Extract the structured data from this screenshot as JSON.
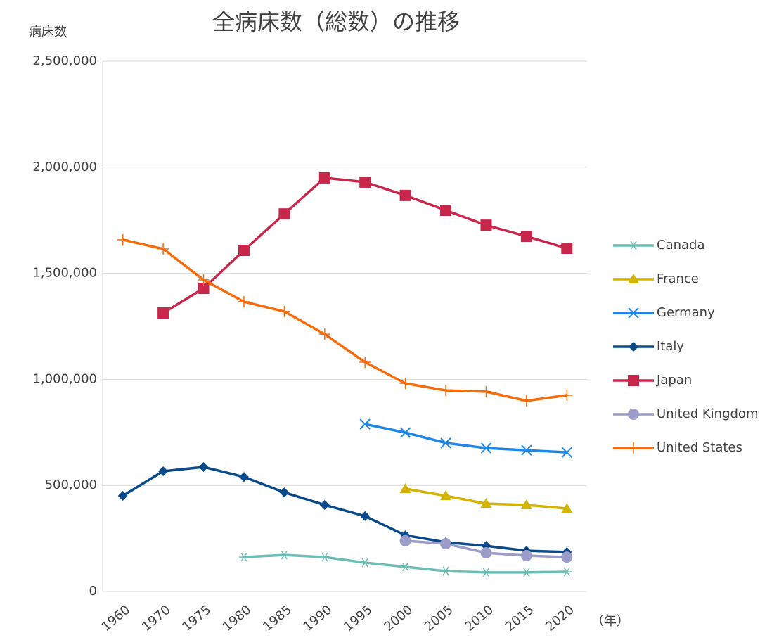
{
  "chart_data": {
    "type": "line",
    "title": "全病床数（総数）の推移",
    "y_label": "病床数",
    "x_label": "（年）",
    "categories": [
      "1960",
      "1970",
      "1975",
      "1980",
      "1985",
      "1990",
      "1995",
      "2000",
      "2005",
      "2010",
      "2015",
      "2020"
    ],
    "ylim": [
      0,
      2500000
    ],
    "yticks": [
      0,
      {
        "value": 500000,
        "label": "500,000"
      },
      {
        "value": 1000000,
        "label": "1,000,000"
      },
      {
        "value": 1500000,
        "label": "1,500,000"
      },
      {
        "value": 2000000,
        "label": "2,000,000"
      },
      {
        "value": 2500000,
        "label": "2,500,000"
      }
    ],
    "grid": true,
    "legend": "right",
    "series": [
      {
        "name": "Canada",
        "color": "#6dbdb4",
        "marker": "asterisk",
        "values": [
          null,
          null,
          null,
          162000,
          172000,
          162000,
          136000,
          116000,
          96000,
          90000,
          90000,
          93000
        ]
      },
      {
        "name": "France",
        "color": "#d4b400",
        "marker": "triangle",
        "values": [
          null,
          null,
          null,
          null,
          null,
          null,
          null,
          484000,
          451000,
          414000,
          408000,
          391000
        ]
      },
      {
        "name": "Germany",
        "color": "#1f87e8",
        "marker": "x",
        "values": [
          null,
          null,
          null,
          null,
          null,
          null,
          789000,
          749000,
          700000,
          676000,
          666000,
          656000
        ]
      },
      {
        "name": "Italy",
        "color": "#0a4a8a",
        "marker": "diamond",
        "values": [
          451000,
          567000,
          587000,
          540000,
          467000,
          408000,
          355000,
          265000,
          232000,
          215000,
          192000,
          186000
        ]
      },
      {
        "name": "Japan",
        "color": "#c8264a",
        "marker": "square",
        "values": [
          null,
          1313000,
          1429000,
          1608000,
          1780000,
          1950000,
          1930000,
          1867000,
          1797000,
          1727000,
          1674000,
          1618000
        ]
      },
      {
        "name": "United Kingdom",
        "color": "#9c9cc8",
        "marker": "circle",
        "values": [
          null,
          null,
          null,
          null,
          null,
          null,
          null,
          239000,
          225000,
          182000,
          169000,
          162000
        ]
      },
      {
        "name": "United States",
        "color": "#f86b0a",
        "marker": "plus",
        "values": [
          1658000,
          1615000,
          1469000,
          1366000,
          1320000,
          1213000,
          1081000,
          981000,
          948000,
          942000,
          899000,
          925000
        ]
      }
    ]
  }
}
